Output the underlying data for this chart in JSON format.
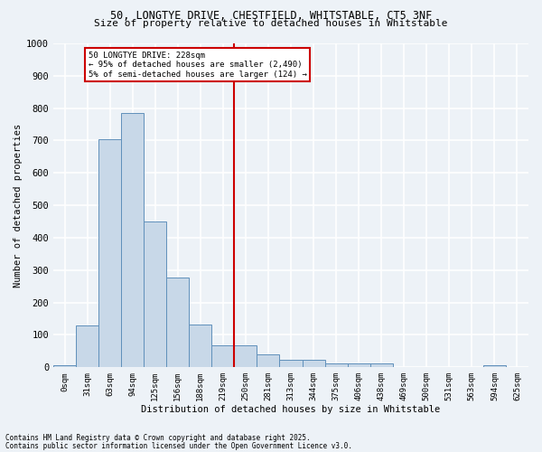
{
  "title1": "50, LONGTYE DRIVE, CHESTFIELD, WHITSTABLE, CT5 3NF",
  "title2": "Size of property relative to detached houses in Whitstable",
  "xlabel": "Distribution of detached houses by size in Whitstable",
  "ylabel": "Number of detached properties",
  "bar_color": "#c8d8e8",
  "bar_edge_color": "#6090bb",
  "categories": [
    "0sqm",
    "31sqm",
    "63sqm",
    "94sqm",
    "125sqm",
    "156sqm",
    "188sqm",
    "219sqm",
    "250sqm",
    "281sqm",
    "313sqm",
    "344sqm",
    "375sqm",
    "406sqm",
    "438sqm",
    "469sqm",
    "500sqm",
    "531sqm",
    "563sqm",
    "594sqm",
    "625sqm"
  ],
  "values": [
    5,
    130,
    705,
    785,
    450,
    278,
    133,
    68,
    68,
    40,
    23,
    23,
    12,
    12,
    12,
    0,
    0,
    0,
    0,
    5,
    0
  ],
  "vline_pos": 7.5,
  "vline_color": "#cc0000",
  "annotation_text": "50 LONGTYE DRIVE: 228sqm\n← 95% of detached houses are smaller (2,490)\n5% of semi-detached houses are larger (124) →",
  "ylim": [
    0,
    1000
  ],
  "yticks": [
    0,
    100,
    200,
    300,
    400,
    500,
    600,
    700,
    800,
    900,
    1000
  ],
  "footer1": "Contains HM Land Registry data © Crown copyright and database right 2025.",
  "footer2": "Contains public sector information licensed under the Open Government Licence v3.0.",
  "background_color": "#edf2f7",
  "grid_color": "#ffffff"
}
